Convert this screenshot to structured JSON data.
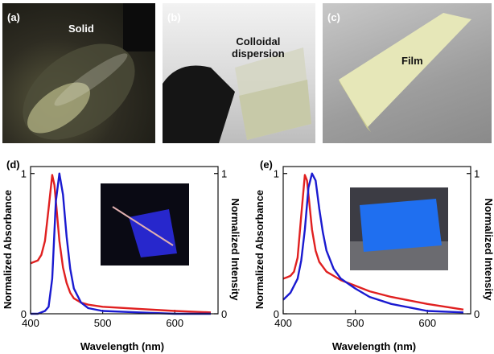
{
  "panels": {
    "a": {
      "label": "(a)",
      "caption": "Solid"
    },
    "b": {
      "label": "(b)",
      "caption_line1": "Colloidal",
      "caption_line2": "dispersion"
    },
    "c": {
      "label": "(c)",
      "caption": "Film"
    }
  },
  "chart_data": [
    {
      "type": "line",
      "panel_label": "(d)",
      "xlabel": "Wavelength (nm)",
      "ylabel": "Normalized Absorbance",
      "y2label": "Normalized Intensity",
      "xlim": [
        400,
        660
      ],
      "ylim": [
        0,
        1.05
      ],
      "xticks": [
        "400",
        "500",
        "600"
      ],
      "yticks_left": [
        "0",
        "1"
      ],
      "yticks_right": [
        "0",
        "1"
      ],
      "series_colors": [
        "#e02020",
        "#1a1ad0"
      ],
      "series": [
        {
          "x": [
            400,
            405,
            410,
            415,
            420,
            425,
            430,
            433,
            436,
            440,
            445,
            450,
            455,
            460,
            470,
            480,
            500,
            550,
            600,
            650
          ],
          "values": [
            0.36,
            0.37,
            0.38,
            0.42,
            0.52,
            0.75,
            0.99,
            0.92,
            0.75,
            0.52,
            0.33,
            0.22,
            0.15,
            0.11,
            0.08,
            0.065,
            0.05,
            0.035,
            0.02,
            0.01
          ]
        },
        {
          "x": [
            400,
            410,
            420,
            425,
            430,
            435,
            440,
            445,
            450,
            455,
            460,
            470,
            480,
            500,
            550,
            600,
            650
          ],
          "values": [
            0.0,
            0.0,
            0.02,
            0.05,
            0.25,
            0.8,
            1.0,
            0.85,
            0.55,
            0.32,
            0.18,
            0.08,
            0.04,
            0.02,
            0.01,
            0.0,
            0.0
          ]
        }
      ]
    },
    {
      "type": "line",
      "panel_label": "(e)",
      "xlabel": "Wavelength (nm)",
      "ylabel": "Normalized Absorbance",
      "y2label": "Normalized Intensity",
      "xlim": [
        400,
        660
      ],
      "ylim": [
        0,
        1.05
      ],
      "xticks": [
        "400",
        "500",
        "600"
      ],
      "yticks_left": [
        "0",
        "1"
      ],
      "yticks_right": [
        "0",
        "1"
      ],
      "series_colors": [
        "#e02020",
        "#1a1ad0"
      ],
      "series": [
        {
          "x": [
            400,
            405,
            410,
            415,
            420,
            425,
            430,
            433,
            436,
            440,
            445,
            450,
            460,
            470,
            480,
            500,
            520,
            550,
            600,
            650
          ],
          "values": [
            0.25,
            0.26,
            0.27,
            0.3,
            0.4,
            0.7,
            0.99,
            0.95,
            0.8,
            0.6,
            0.45,
            0.37,
            0.3,
            0.27,
            0.24,
            0.2,
            0.16,
            0.12,
            0.07,
            0.03
          ]
        },
        {
          "x": [
            400,
            410,
            420,
            425,
            430,
            435,
            440,
            445,
            450,
            455,
            460,
            470,
            480,
            500,
            520,
            550,
            600,
            650
          ],
          "values": [
            0.1,
            0.15,
            0.25,
            0.38,
            0.6,
            0.9,
            1.0,
            0.95,
            0.75,
            0.58,
            0.45,
            0.32,
            0.25,
            0.18,
            0.12,
            0.07,
            0.02,
            0.01
          ]
        }
      ]
    }
  ]
}
